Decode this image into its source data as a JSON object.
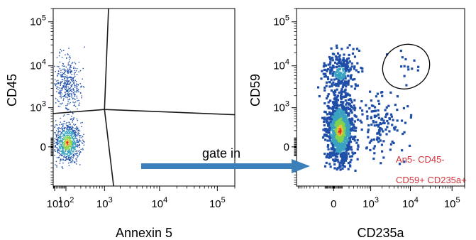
{
  "chart_data": [
    {
      "type": "scatter",
      "title": "",
      "xlabel": "Annexin 5",
      "ylabel": "CD45",
      "x_scale": "biexponential",
      "y_scale": "biexponential",
      "x_ticks": [
        {
          "value": 10,
          "base": "10",
          "exp": "1"
        },
        {
          "value": 100,
          "base": "10",
          "exp": "2"
        },
        {
          "value": 1000,
          "base": "10",
          "exp": "3"
        },
        {
          "value": 10000,
          "base": "10",
          "exp": "4"
        },
        {
          "value": 100000,
          "base": "10",
          "exp": "5"
        }
      ],
      "y_ticks": [
        {
          "value": 0,
          "label": "0"
        },
        {
          "value": 1000,
          "base": "10",
          "exp": "3"
        },
        {
          "value": 10000,
          "base": "10",
          "exp": "4"
        },
        {
          "value": 100000,
          "base": "10",
          "exp": "5"
        }
      ],
      "xlim": [
        1,
        200000
      ],
      "ylim": [
        -1000,
        200000
      ],
      "quadrant_gate": {
        "center": [
          1000,
          900
        ],
        "top_end": [
          1200,
          200000
        ],
        "bottom_end": [
          1500,
          -1000
        ],
        "left_end": [
          1,
          700
        ],
        "right_end": [
          200000,
          650
        ]
      },
      "populations": [
        {
          "name": "",
          "x": [
            1.5,
            300
          ],
          "y": [
            -200,
            400
          ],
          "density": "high",
          "count": 900
        },
        {
          "name": "",
          "x": [
            3,
            300
          ],
          "y": [
            700,
            20000
          ],
          "density": "low",
          "count": 420
        }
      ]
    },
    {
      "type": "scatter",
      "title": "",
      "xlabel": "CD235a",
      "ylabel": "CD59",
      "x_scale": "biexponential",
      "y_scale": "biexponential",
      "x_ticks": [
        {
          "value": 0,
          "label": "0"
        },
        {
          "value": 1000,
          "base": "10",
          "exp": "3"
        },
        {
          "value": 10000,
          "base": "10",
          "exp": "4"
        },
        {
          "value": 100000,
          "base": "10",
          "exp": "5"
        }
      ],
      "y_ticks": [
        {
          "value": 0,
          "label": "0"
        },
        {
          "value": 1000,
          "base": "10",
          "exp": "3"
        },
        {
          "value": 10000,
          "base": "10",
          "exp": "4"
        },
        {
          "value": 100000,
          "base": "10",
          "exp": "5"
        }
      ],
      "xlim": [
        -1000,
        200000
      ],
      "ylim": [
        -1000,
        200000
      ],
      "gate": {
        "type": "ellipse",
        "center": [
          6000,
          9000
        ],
        "x_span": [
          2000,
          30000
        ],
        "y_span": [
          3000,
          30000
        ]
      },
      "gate_label": [
        "An5- CD45-",
        "CD59+ CD235a+"
      ],
      "populations": [
        {
          "name": "",
          "x": [
            -100,
            300
          ],
          "y": [
            -200,
            2000
          ],
          "density": "high",
          "count": 1000
        },
        {
          "name": "",
          "x": [
            -150,
            400
          ],
          "y": [
            2000,
            25000
          ],
          "density": "medium",
          "count": 260
        },
        {
          "name": "",
          "x": [
            300,
            8000
          ],
          "y": [
            -100,
            3000
          ],
          "density": "low",
          "count": 140
        },
        {
          "name": "",
          "x": [
            2500,
            15000
          ],
          "y": [
            5000,
            25000
          ],
          "density": "low",
          "count": 14
        }
      ]
    }
  ],
  "annotations": {
    "arrow_label": "gate in",
    "arrow_color": "#3b7fbb"
  },
  "colors": {
    "density_low": "#1f4ea8",
    "density_mid": "#3aa2c0",
    "density_high": "#7fd24e",
    "density_peak": "#e8c23a",
    "density_max": "#e02020",
    "gate_label": "#d0343c",
    "axis": "#000000"
  }
}
